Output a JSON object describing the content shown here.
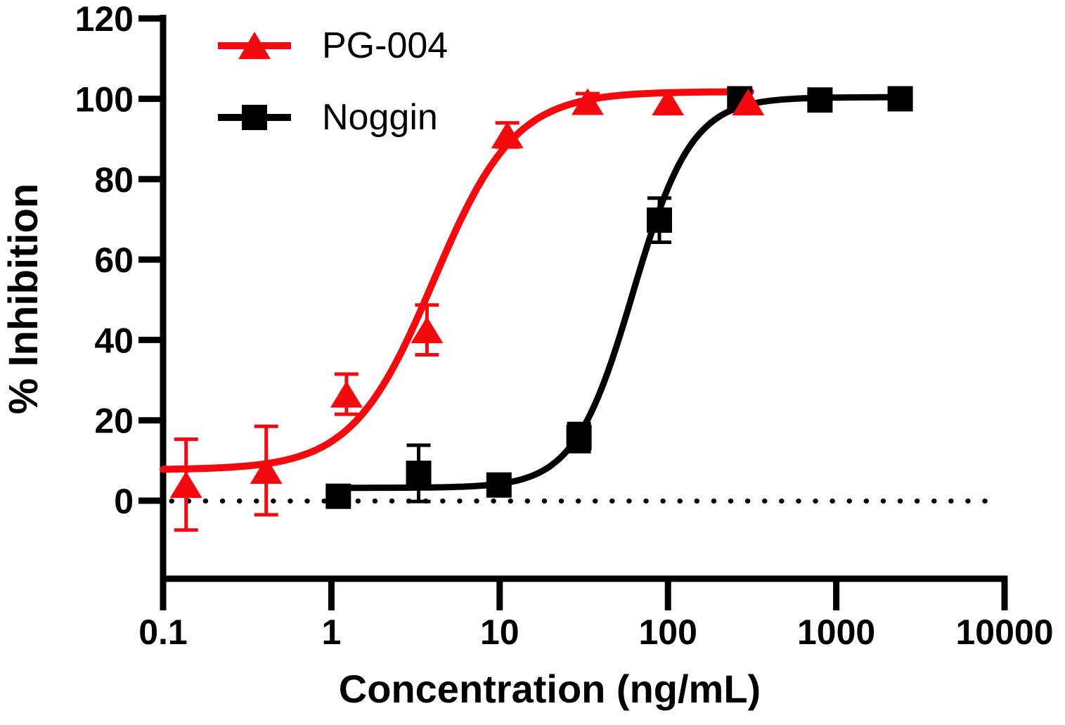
{
  "figure": {
    "background": "#ffffff"
  },
  "legend": {
    "items": [
      {
        "label": "PG-004",
        "color": "#f40a0e",
        "marker": "triangle"
      },
      {
        "label": "Noggin",
        "color": "#000000",
        "marker": "square"
      }
    ]
  },
  "axes": {
    "x_title": "Concentration (ng/mL)",
    "y_title": "% Inhibition",
    "x_tick_labels": [
      "0.1",
      "1",
      "10",
      "100",
      "1000",
      "10000"
    ],
    "y_tick_labels": [
      "0",
      "20",
      "40",
      "60",
      "80",
      "100",
      "120"
    ]
  },
  "chart_data": {
    "type": "scatter",
    "title": "",
    "xlabel": "Concentration (ng/mL)",
    "ylabel": "% Inhibition",
    "x_scale": "log10",
    "xlim": [
      0.1,
      10000
    ],
    "ylim": [
      -20,
      120
    ],
    "x_ticks": [
      0.1,
      1,
      10,
      100,
      1000,
      10000
    ],
    "y_ticks": [
      0,
      20,
      40,
      60,
      80,
      100,
      120
    ],
    "grid": false,
    "legend_position": "top-left",
    "zero_reference_line": {
      "y": 0,
      "style": "dotted"
    },
    "series": [
      {
        "name": "PG-004",
        "color": "#f40a0e",
        "marker": "triangle",
        "points": [
          {
            "x": 0.137,
            "y": 4.0,
            "err": 11.3
          },
          {
            "x": 0.41,
            "y": 7.5,
            "err": 11.0
          },
          {
            "x": 1.23,
            "y": 26.5,
            "err": 5.0
          },
          {
            "x": 3.7,
            "y": 42.5,
            "err": 6.2
          },
          {
            "x": 11.1,
            "y": 91.0,
            "err": 3.0
          },
          {
            "x": 33.3,
            "y": 99.3,
            "err": 2.0
          },
          {
            "x": 100,
            "y": 99.2,
            "err": 0
          },
          {
            "x": 300,
            "y": 99.2,
            "err": 0
          }
        ],
        "fit_curve": {
          "model": "4PL",
          "bottom": 7.7,
          "top": 101.8,
          "ec50": 4.05,
          "hill": 1.8,
          "x_range": [
            0.1,
            310
          ]
        }
      },
      {
        "name": "Noggin",
        "color": "#000000",
        "marker": "square",
        "points": [
          {
            "x": 1.1,
            "y": 1.1,
            "err": 0
          },
          {
            "x": 3.3,
            "y": 6.8,
            "err": 7.0
          },
          {
            "x": 9.9,
            "y": 3.9,
            "err": 0
          },
          {
            "x": 29.6,
            "y": 15.7,
            "err": 3.5
          },
          {
            "x": 88.9,
            "y": 69.8,
            "err": 5.5
          },
          {
            "x": 267,
            "y": 100.0,
            "err": 0
          },
          {
            "x": 800,
            "y": 99.7,
            "err": 0
          },
          {
            "x": 2400,
            "y": 100.0,
            "err": 0
          }
        ],
        "fit_curve": {
          "model": "4PL",
          "bottom": 3.2,
          "top": 100.4,
          "ec50": 62,
          "hill": 2.5,
          "x_range": [
            1.1,
            2400
          ]
        }
      }
    ]
  }
}
